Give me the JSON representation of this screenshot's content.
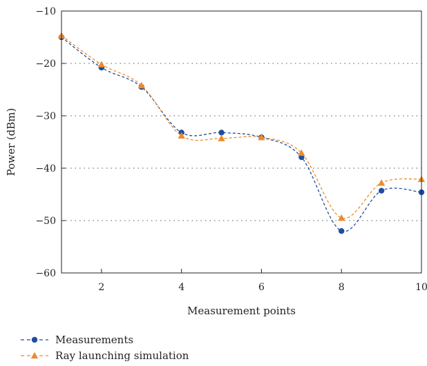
{
  "chart_data": {
    "type": "line",
    "title": "",
    "xlabel": "Measurement points",
    "ylabel": "Power (dBm)",
    "xlim": [
      1,
      10
    ],
    "ylim": [
      -60,
      -10
    ],
    "xticks": [
      2,
      4,
      6,
      8,
      10
    ],
    "yticks": [
      -10,
      -20,
      -30,
      -40,
      -50,
      -60
    ],
    "xtick_labels": [
      "2",
      "4",
      "6",
      "8",
      "10"
    ],
    "ytick_labels": [
      "−10",
      "−20",
      "−30",
      "−40",
      "−50",
      "−60"
    ],
    "grid": "horizontal dotted",
    "legend_position": "bottom-left",
    "x": [
      1,
      2,
      3,
      4,
      5,
      6,
      7,
      8,
      9,
      10
    ],
    "series": [
      {
        "name": "Measurements",
        "values": [
          -15.0,
          -20.8,
          -24.5,
          -33.2,
          -33.2,
          -34.1,
          -37.9,
          -52.0,
          -44.3,
          -44.6
        ],
        "color": "#1f4e9c",
        "marker": "circle",
        "line_style": "dashed"
      },
      {
        "name": "Ray launching simulation",
        "values": [
          -14.7,
          -20.2,
          -24.2,
          -33.8,
          -34.3,
          -34.1,
          -37.1,
          -49.5,
          -42.8,
          -42.1
        ],
        "color": "#ee8a2b",
        "marker": "triangle",
        "line_style": "dashed"
      }
    ]
  }
}
